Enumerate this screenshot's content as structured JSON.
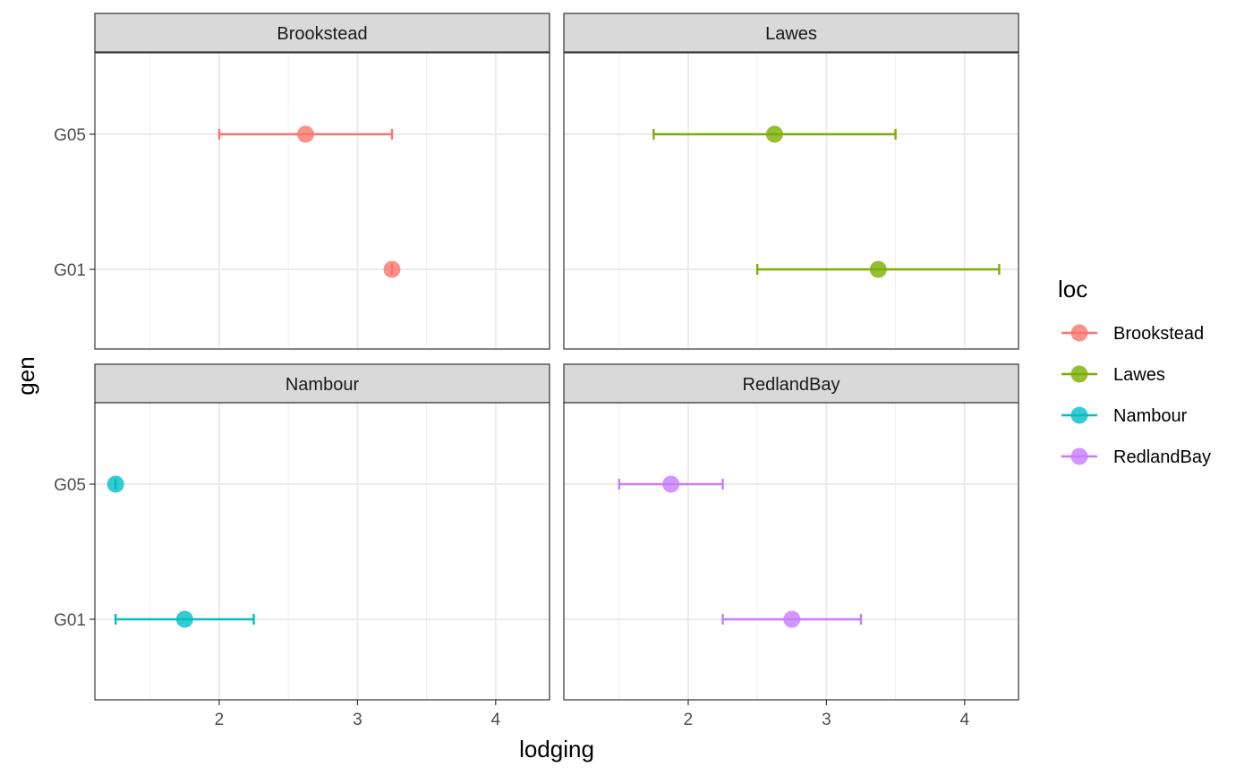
{
  "chart_data": {
    "type": "errorbar-dotplot",
    "xlabel": "lodging",
    "ylabel": "gen",
    "xlim": [
      1.1,
      4.39
    ],
    "x_ticks": [
      2,
      3,
      4
    ],
    "x_minor": [
      1.5,
      2.5,
      3.5
    ],
    "y_categories": [
      "G05",
      "G01"
    ],
    "legend": {
      "title": "loc",
      "position": "right",
      "items": [
        {
          "label": "Brookstead",
          "color": "#F8766D"
        },
        {
          "label": "Lawes",
          "color": "#7CAE00"
        },
        {
          "label": "Nambour",
          "color": "#00BFC4"
        },
        {
          "label": "RedlandBay",
          "color": "#C77CFF"
        }
      ]
    },
    "panels": [
      {
        "title": "Brookstead",
        "color": "#F8766D",
        "points": [
          {
            "gen": "G05",
            "mean": 2.625,
            "low": 2.0,
            "high": 3.25
          },
          {
            "gen": "G01",
            "mean": 3.25,
            "low": 3.25,
            "high": 3.25
          }
        ]
      },
      {
        "title": "Lawes",
        "color": "#7CAE00",
        "points": [
          {
            "gen": "G05",
            "mean": 2.625,
            "low": 1.75,
            "high": 3.5
          },
          {
            "gen": "G01",
            "mean": 3.375,
            "low": 2.5,
            "high": 4.25
          }
        ]
      },
      {
        "title": "Nambour",
        "color": "#00BFC4",
        "points": [
          {
            "gen": "G05",
            "mean": 1.25,
            "low": 1.25,
            "high": 1.25
          },
          {
            "gen": "G01",
            "mean": 1.75,
            "low": 1.25,
            "high": 2.25
          }
        ]
      },
      {
        "title": "RedlandBay",
        "color": "#C77CFF",
        "points": [
          {
            "gen": "G05",
            "mean": 1.875,
            "low": 1.5,
            "high": 2.25
          },
          {
            "gen": "G01",
            "mean": 2.75,
            "low": 2.25,
            "high": 3.25
          }
        ]
      }
    ]
  }
}
